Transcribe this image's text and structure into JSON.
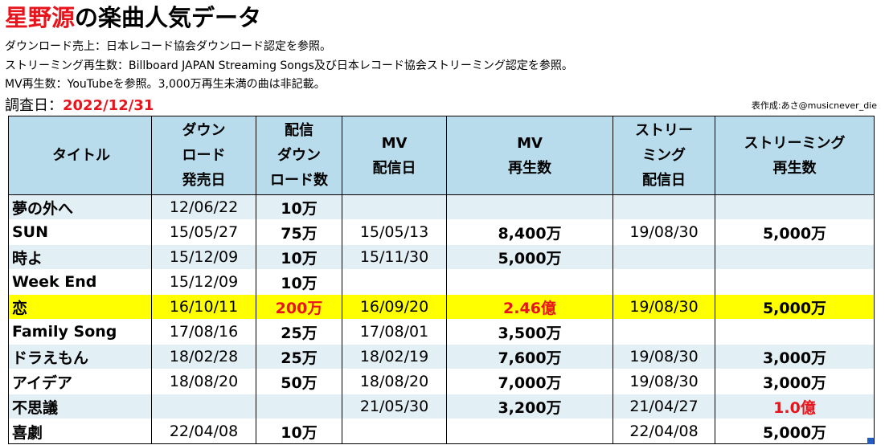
{
  "header": {
    "artist": "星野源",
    "title_rest": "の楽曲人気データ",
    "notes": [
      "ダウンロード売上：日本レコード協会ダウンロード認定を参照。",
      "ストリーミング再生数：Billboard JAPAN Streaming Songs及び日本レコード協会ストリーミング認定を参照。",
      "MV再生数：YouTubeを参照。3,000万再生未満の曲は非記載。"
    ],
    "date_label": "調査日：",
    "date_value": "2022/12/31",
    "credit": "表作成:あさ@musicnever_die"
  },
  "table": {
    "columns": [
      "タイトル",
      "ダウンロード発売日",
      "配信ダウンロード数",
      "MV配信日",
      "MV再生数",
      "ストリーミング配信日",
      "ストリーミング再生数"
    ],
    "column_lines": [
      [
        "タイトル"
      ],
      [
        "ダウン",
        "ロード",
        "発売日"
      ],
      [
        "配信",
        "ダウン",
        "ロード数"
      ],
      [
        "MV",
        "配信日"
      ],
      [
        "MV",
        "再生数"
      ],
      [
        "ストリー",
        "ミング",
        "配信日"
      ],
      [
        "ストリーミング",
        "再生数"
      ]
    ],
    "rows": [
      {
        "title": "夢の外へ",
        "dl_date": "12/06/22",
        "dl_count": "10万",
        "mv_date": "",
        "mv_views": "",
        "st_date": "",
        "st_plays": ""
      },
      {
        "title": "SUN",
        "dl_date": "15/05/27",
        "dl_count": "75万",
        "mv_date": "15/05/13",
        "mv_views": "8,400万",
        "st_date": "19/08/30",
        "st_plays": "5,000万"
      },
      {
        "title": "時よ",
        "dl_date": "15/12/09",
        "dl_count": "10万",
        "mv_date": "15/11/30",
        "mv_views": "5,000万",
        "st_date": "",
        "st_plays": ""
      },
      {
        "title": "Week End",
        "dl_date": "15/12/09",
        "dl_count": "10万",
        "mv_date": "",
        "mv_views": "",
        "st_date": "",
        "st_plays": ""
      },
      {
        "title": "恋",
        "dl_date": "16/10/11",
        "dl_count": "200万",
        "mv_date": "16/09/20",
        "mv_views": "2.46億",
        "st_date": "19/08/30",
        "st_plays": "5,000万"
      },
      {
        "title": "Family Song",
        "dl_date": "17/08/16",
        "dl_count": "25万",
        "mv_date": "17/08/01",
        "mv_views": "3,500万",
        "st_date": "",
        "st_plays": ""
      },
      {
        "title": "ドラえもん",
        "dl_date": "18/02/28",
        "dl_count": "25万",
        "mv_date": "18/02/19",
        "mv_views": "7,600万",
        "st_date": "19/08/30",
        "st_plays": "3,000万"
      },
      {
        "title": "アイデア",
        "dl_date": "18/08/20",
        "dl_count": "50万",
        "mv_date": "18/08/20",
        "mv_views": "7,000万",
        "st_date": "19/08/30",
        "st_plays": "3,000万"
      },
      {
        "title": "不思議",
        "dl_date": "",
        "dl_count": "",
        "mv_date": "21/05/30",
        "mv_views": "3,200万",
        "st_date": "21/04/27",
        "st_plays": "1.0億"
      },
      {
        "title": "喜劇",
        "dl_date": "22/04/08",
        "dl_count": "10万",
        "mv_date": "",
        "mv_views": "",
        "st_date": "22/04/08",
        "st_plays": "5,000万"
      }
    ]
  },
  "colors": {
    "accent_red": "#e8141c",
    "header_bg": "#b8dceb",
    "stripe_bg": "#e2eff5",
    "highlight_bg": "#ffff00"
  }
}
